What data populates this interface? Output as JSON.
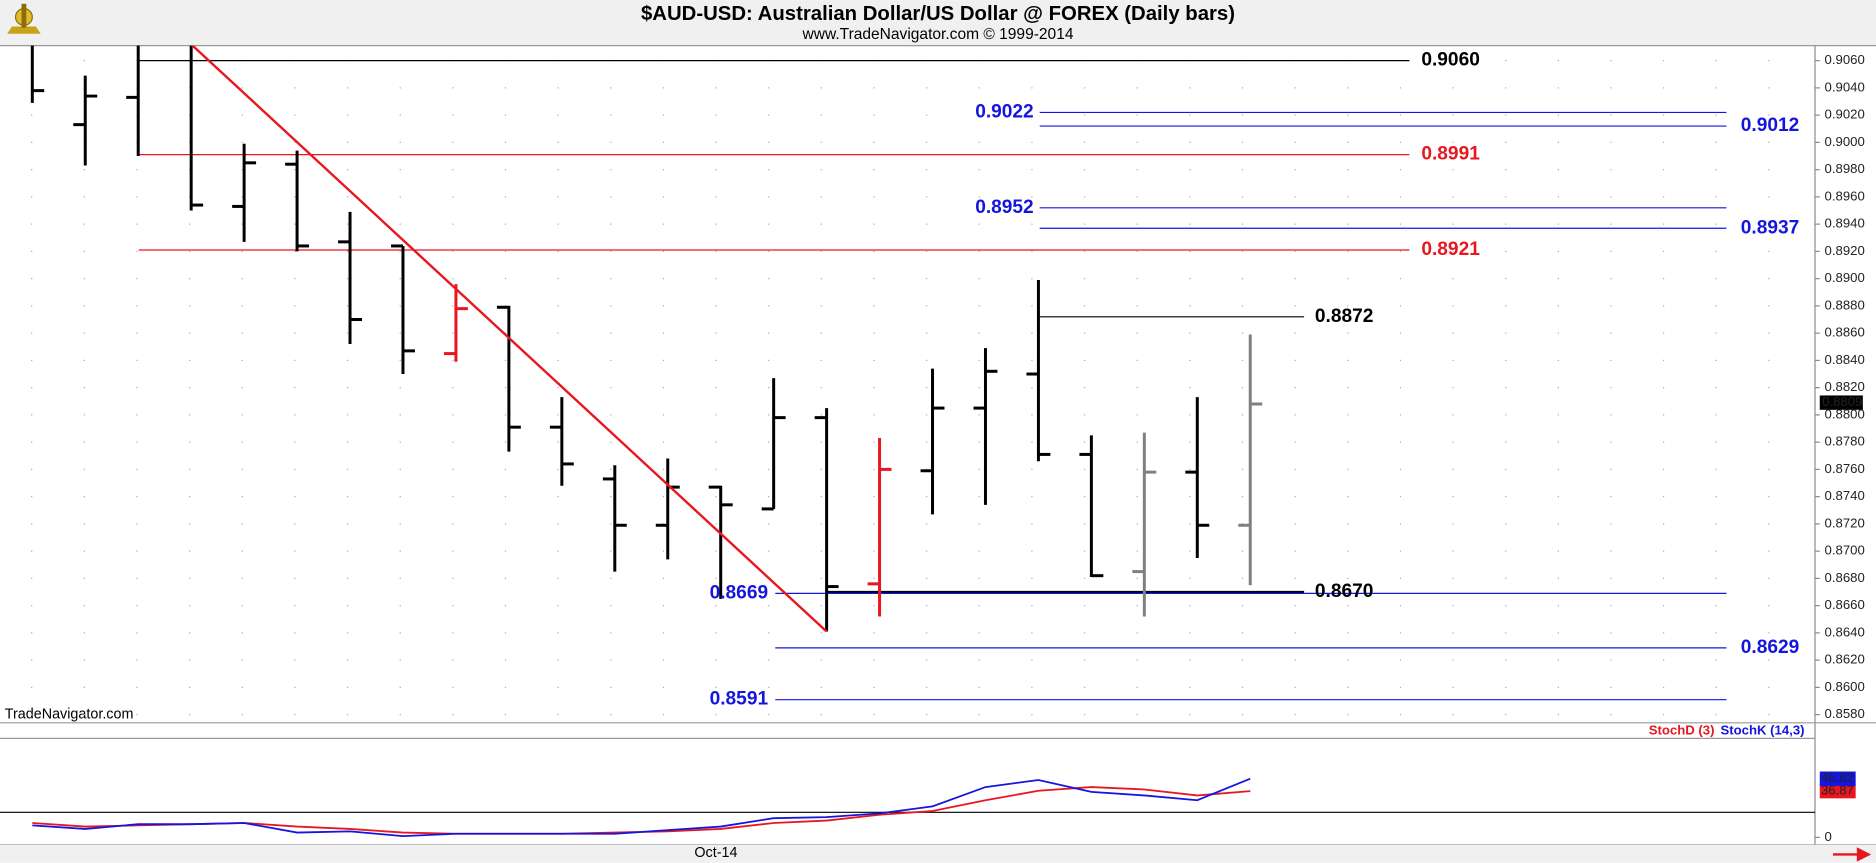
{
  "chart_data": [
    {
      "type": "ohlc",
      "title": "$AUD-USD:  Australian Dollar/US Dollar @ FOREX  (Daily bars)",
      "subtitle": "www.TradeNavigator.com © 1999-2014",
      "watermark": "TradeNavigator.com",
      "categories": [
        null,
        null,
        null,
        null,
        null,
        null,
        null,
        null,
        null,
        null,
        null,
        null,
        null,
        "Oct-14",
        null,
        null,
        null,
        null,
        null,
        null,
        null,
        null,
        null,
        null
      ],
      "open": [
        null,
        0.9013,
        0.9033,
        null,
        0.8953,
        0.8984,
        0.8927,
        0.8924,
        0.8845,
        0.8879,
        0.8791,
        0.8753,
        0.8719,
        0.8747,
        0.8731,
        0.8798,
        0.8676,
        0.8759,
        0.8805,
        0.883,
        0.8771,
        0.8685,
        0.8758,
        0.8719
      ],
      "high": [
        0.9075,
        0.9049,
        0.9075,
        0.9072,
        0.8999,
        0.8994,
        0.8949,
        0.8924,
        0.8896,
        0.888,
        0.8813,
        0.8763,
        0.8768,
        0.8748,
        0.8827,
        0.8805,
        0.8783,
        0.8834,
        0.8849,
        0.8899,
        0.8785,
        0.8787,
        0.8813,
        0.8859
      ],
      "low": [
        0.9029,
        0.8983,
        0.899,
        0.895,
        0.8927,
        0.892,
        0.8852,
        0.883,
        0.8839,
        0.8773,
        0.8748,
        0.8685,
        0.8694,
        0.8665,
        0.8731,
        0.8641,
        0.8652,
        0.8727,
        0.8734,
        0.8766,
        0.8681,
        0.8652,
        0.8695,
        0.8675
      ],
      "close": [
        0.9038,
        0.9034,
        null,
        0.8954,
        0.8985,
        0.8924,
        0.887,
        0.8847,
        0.8878,
        0.8791,
        0.8764,
        0.8719,
        0.8747,
        0.8734,
        0.8798,
        0.8674,
        0.876,
        0.8805,
        0.8832,
        0.8771,
        0.8682,
        0.8758,
        0.8719,
        0.8808
      ],
      "colors": [
        "#000000",
        "#000000",
        "#000000",
        "#000000",
        "#000000",
        "#000000",
        "#000000",
        "#000000",
        "#e8171f",
        "#000000",
        "#000000",
        "#000000",
        "#000000",
        "#000000",
        "#000000",
        "#000000",
        "#e8171f",
        "#000000",
        "#000000",
        "#000000",
        "#000000",
        "#808080",
        "#000000",
        "#808080"
      ],
      "levels": [
        {
          "value": 0.906,
          "label": "0.9060",
          "color": "#000000"
        },
        {
          "value": 0.9022,
          "color": "#1515e0"
        },
        {
          "value": 0.9012,
          "color": "#1515e0"
        },
        {
          "value": 0.8991,
          "color": "#e8171f"
        },
        {
          "value": 0.8952,
          "color": "#1515e0"
        },
        {
          "value": 0.8937,
          "color": "#1515e0"
        },
        {
          "value": 0.8921,
          "color": "#e8171f"
        },
        {
          "value": 0.8872,
          "color": "#000000"
        },
        {
          "value": 0.867,
          "label": "0.8670",
          "color": "#000000"
        },
        {
          "value": 0.8669,
          "color": "#1515e0"
        },
        {
          "value": 0.8629,
          "color": "#1515e0"
        },
        {
          "value": 0.8591,
          "color": "#1515e0"
        }
      ],
      "trendline_color": "#e8171f",
      "last_price": 0.8809,
      "ylim": [
        0.8574,
        0.9071
      ],
      "yticks": [
        {
          "value": 0.858,
          "label": "0.8580"
        },
        {
          "value": 0.86,
          "label": "0.8600"
        },
        {
          "value": 0.862,
          "label": "0.8620"
        },
        {
          "value": 0.864,
          "label": "0.8640"
        },
        {
          "value": 0.866,
          "label": "0.8660"
        },
        {
          "value": 0.868,
          "label": "0.8680"
        },
        {
          "value": 0.87,
          "label": "0.8700"
        },
        {
          "value": 0.872,
          "label": "0.8720"
        },
        {
          "value": 0.874,
          "label": "0.8740"
        },
        {
          "value": 0.876,
          "label": "0.8760"
        },
        {
          "value": 0.878,
          "label": "0.8780"
        },
        {
          "value": 0.88,
          "label": "0.8800"
        },
        {
          "value": 0.882,
          "label": "0.8820"
        },
        {
          "value": 0.884,
          "label": "0.8840"
        },
        {
          "value": 0.886,
          "label": "0.8860"
        },
        {
          "value": 0.888,
          "label": "0.8880"
        },
        {
          "value": 0.89,
          "label": "0.8900"
        },
        {
          "value": 0.892,
          "label": "0.8920"
        },
        {
          "value": 0.894,
          "label": "0.8940"
        },
        {
          "value": 0.896,
          "label": "0.8960"
        },
        {
          "value": 0.898,
          "label": "0.8980"
        },
        {
          "value": 0.9,
          "label": "0.9000"
        },
        {
          "value": 0.902,
          "label": "0.9020"
        },
        {
          "value": 0.904,
          "label": "0.9040"
        },
        {
          "value": 0.906,
          "label": "0.9060"
        }
      ],
      "grid": true
    },
    {
      "type": "line",
      "series": [
        {
          "name": "StochD (3)",
          "color": "#e8171f",
          "values": [
            11.5,
            8.6,
            9.6,
            10.5,
            11.5,
            8.6,
            6.7,
            3.8,
            2.9,
            2.9,
            2.9,
            3.8,
            4.8,
            6.7,
            11.5,
            13.4,
            18.1,
            21.0,
            29.6,
            37.2,
            40.1,
            38.2,
            33.4,
            36.87
          ]
        },
        {
          "name": "StochK (14,3)",
          "color": "#1515e0",
          "values": [
            9.6,
            6.7,
            10.5,
            10.5,
            11.5,
            3.8,
            4.8,
            1.0,
            2.9,
            2.9,
            2.9,
            2.9,
            5.7,
            8.6,
            15.3,
            16.2,
            19.1,
            24.8,
            40.1,
            45.8,
            36.3,
            33.4,
            29.6,
            46.82
          ]
        }
      ],
      "reference_lines": [
        20
      ],
      "ylim": [
        -6,
        79
      ],
      "yticks": [
        0
      ]
    }
  ]
}
